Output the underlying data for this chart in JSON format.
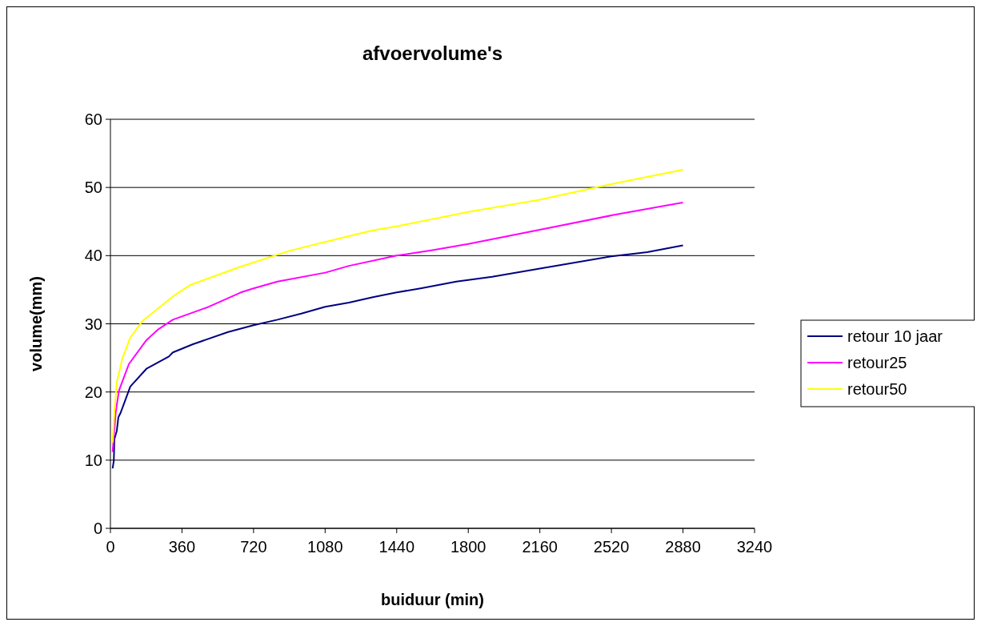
{
  "chart_data": {
    "type": "line",
    "title": "afvoervolume's",
    "xlabel": "buiduur (min)",
    "ylabel": "volume(mm)",
    "xlim": [
      0,
      3240
    ],
    "xticks": [
      0,
      360,
      720,
      1080,
      1440,
      1800,
      2160,
      2520,
      2880,
      3240
    ],
    "ylim": [
      0,
      60
    ],
    "yticks": [
      0,
      10,
      20,
      30,
      40,
      50,
      60
    ],
    "grid": "y",
    "legend": "right",
    "marker": "none",
    "line_style": "solid",
    "series": [
      {
        "name": "retour 10 jaar",
        "color": "#000080",
        "x": [
          11,
          17,
          20,
          32,
          40,
          52,
          100,
          181,
          294,
          314,
          415,
          592,
          720,
          840,
          960,
          1080,
          1200,
          1320,
          1440,
          1560,
          1740,
          1920,
          2160,
          2520,
          2700,
          2880
        ],
        "values": [
          8.8,
          9.9,
          13.1,
          14.3,
          16.3,
          17,
          20.8,
          23.4,
          25.2,
          25.8,
          27,
          28.8,
          29.8,
          30.6,
          31.5,
          32.5,
          33.1,
          33.9,
          34.6,
          35.2,
          36.2,
          36.9,
          38.1,
          39.9,
          40.5,
          41.5
        ]
      },
      {
        "name": "retour25",
        "color": "#ff00ff",
        "x": [
          11,
          27,
          43,
          93,
          181,
          241,
          314,
          495,
          656,
          720,
          840,
          1080,
          1200,
          1440,
          1620,
          1800,
          2160,
          2520,
          2880
        ],
        "values": [
          11.2,
          17.1,
          20.2,
          24.1,
          27.6,
          29.2,
          30.6,
          32.5,
          34.6,
          35.2,
          36.2,
          37.5,
          38.5,
          40,
          40.8,
          41.7,
          43.8,
          45.9,
          47.8
        ]
      },
      {
        "name": "retour50",
        "color": "#ffff00",
        "x": [
          11,
          20,
          32,
          60,
          100,
          161,
          241,
          314,
          402,
          656,
          900,
          1080,
          1320,
          1440,
          1800,
          2160,
          2520,
          2880
        ],
        "values": [
          12.6,
          17,
          21.4,
          24.9,
          28,
          30.4,
          32.3,
          34,
          35.7,
          38.4,
          40.7,
          42,
          43.7,
          44.3,
          46.4,
          48.2,
          50.5,
          52.6
        ]
      }
    ]
  }
}
